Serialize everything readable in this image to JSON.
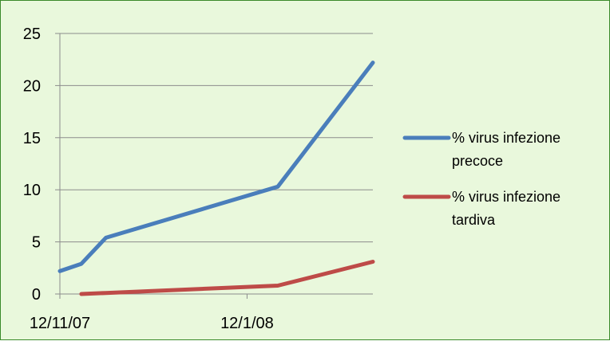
{
  "chart_data": {
    "type": "line",
    "title": "",
    "xlabel": "",
    "ylabel": "",
    "ylim": [
      0,
      25
    ],
    "yticks": [
      0,
      5,
      10,
      15,
      20,
      25
    ],
    "x_tick_labels": [
      "12/11/07",
      "12/1/08"
    ],
    "grid": "horizontal",
    "legend_position": "right",
    "series": [
      {
        "name": "%   virus infezione precoce",
        "legend_lines": [
          "%   virus infezione",
          "precoce"
        ],
        "color": "#4a7ebb",
        "points": [
          {
            "x": "2007-11-12",
            "y": 2.2
          },
          {
            "x": "2007-11-19",
            "y": 2.9
          },
          {
            "x": "2007-11-27",
            "y": 5.4
          },
          {
            "x": "2008-01-22",
            "y": 10.3
          },
          {
            "x": "2008-02-22",
            "y": 22.2
          }
        ]
      },
      {
        "name": "% virus  infezione tardiva",
        "legend_lines": [
          "% virus  infezione",
          "tardiva"
        ],
        "color": "#be4b48",
        "points": [
          {
            "x": "2007-11-19",
            "y": 0.0
          },
          {
            "x": "2007-11-27",
            "y": 0.1
          },
          {
            "x": "2008-01-22",
            "y": 0.8
          },
          {
            "x": "2008-02-22",
            "y": 3.1
          }
        ]
      }
    ]
  }
}
